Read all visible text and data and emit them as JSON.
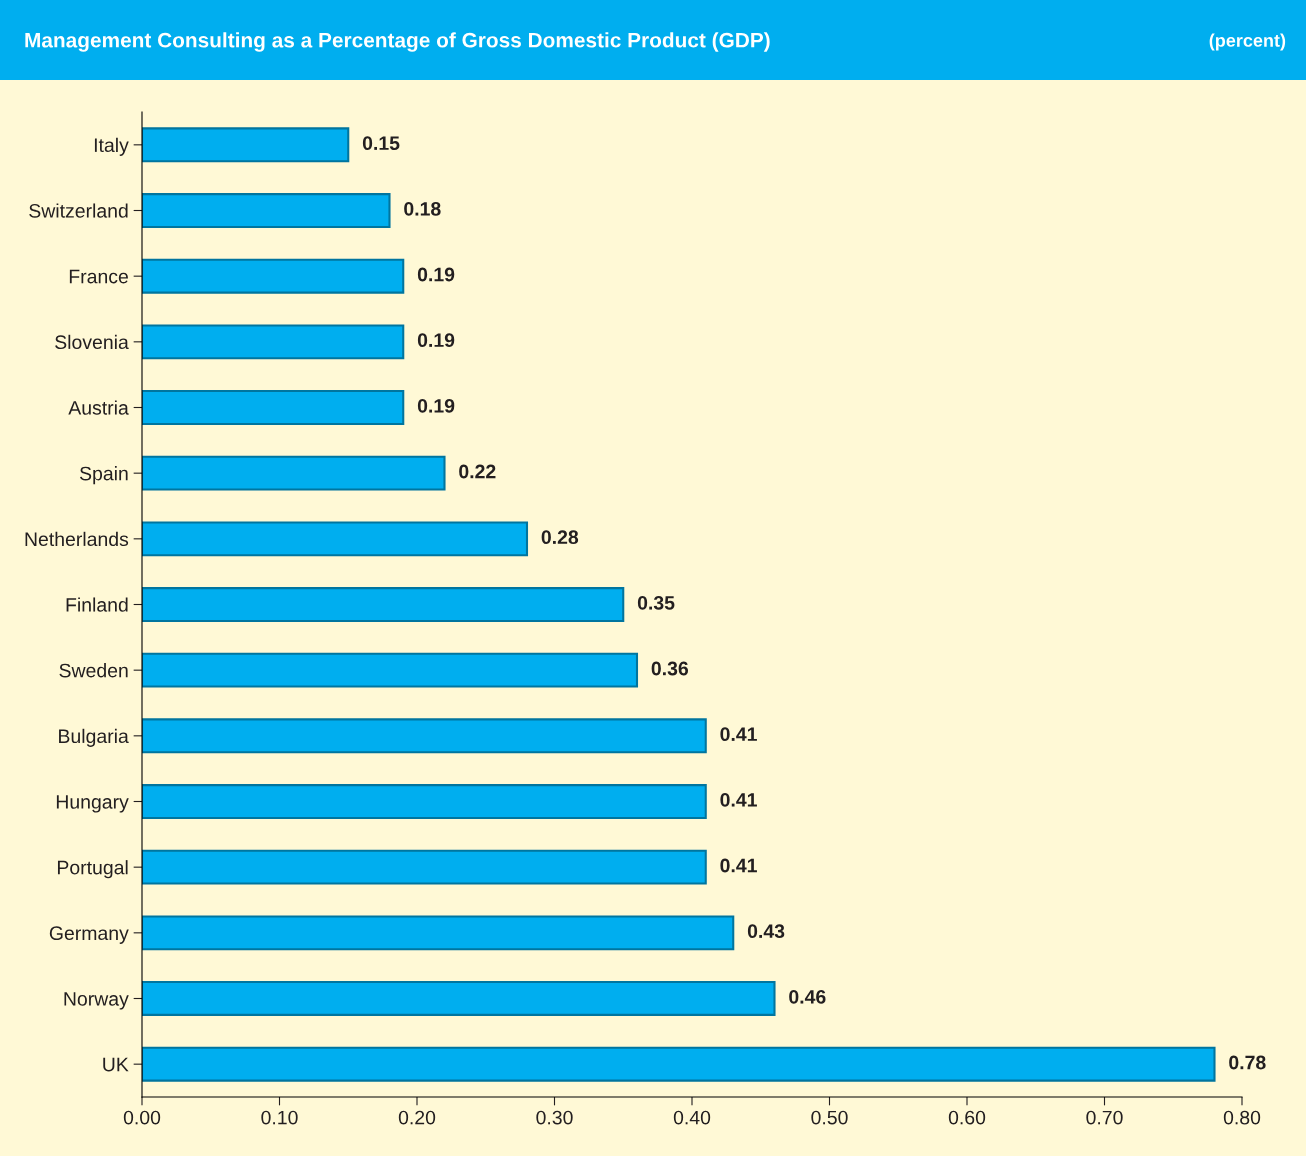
{
  "chart_data": {
    "type": "bar",
    "orientation": "horizontal",
    "title": "Management Consulting as a Percentage of Gross Domestic Product (GDP)",
    "subtitle": "(percent)",
    "categories": [
      "Italy",
      "Switzerland",
      "France",
      "Slovenia",
      "Austria",
      "Spain",
      "Netherlands",
      "Finland",
      "Sweden",
      "Bulgaria",
      "Hungary",
      "Portugal",
      "Germany",
      "Norway",
      "UK"
    ],
    "values": [
      0.15,
      0.18,
      0.19,
      0.19,
      0.19,
      0.22,
      0.28,
      0.35,
      0.36,
      0.41,
      0.41,
      0.41,
      0.43,
      0.46,
      0.78
    ],
    "value_labels": [
      "0.15",
      "0.18",
      "0.19",
      "0.19",
      "0.19",
      "0.22",
      "0.28",
      "0.35",
      "0.36",
      "0.41",
      "0.41",
      "0.41",
      "0.43",
      "0.46",
      "0.78"
    ],
    "color": "#00aeef",
    "xlim": [
      0,
      0.8
    ],
    "xticks": [
      {
        "value": 0,
        "label": "0.00"
      },
      {
        "value": 0.1,
        "label": "0.10"
      },
      {
        "value": 0.2,
        "label": "0.20"
      },
      {
        "value": 0.3,
        "label": "0.30"
      },
      {
        "value": 0.4,
        "label": "0.40"
      },
      {
        "value": 0.5,
        "label": "0.50"
      },
      {
        "value": 0.6,
        "label": "0.60"
      },
      {
        "value": 0.7,
        "label": "0.70"
      },
      {
        "value": 0.8,
        "label": "0.80"
      }
    ],
    "grid": false,
    "legend": false
  }
}
